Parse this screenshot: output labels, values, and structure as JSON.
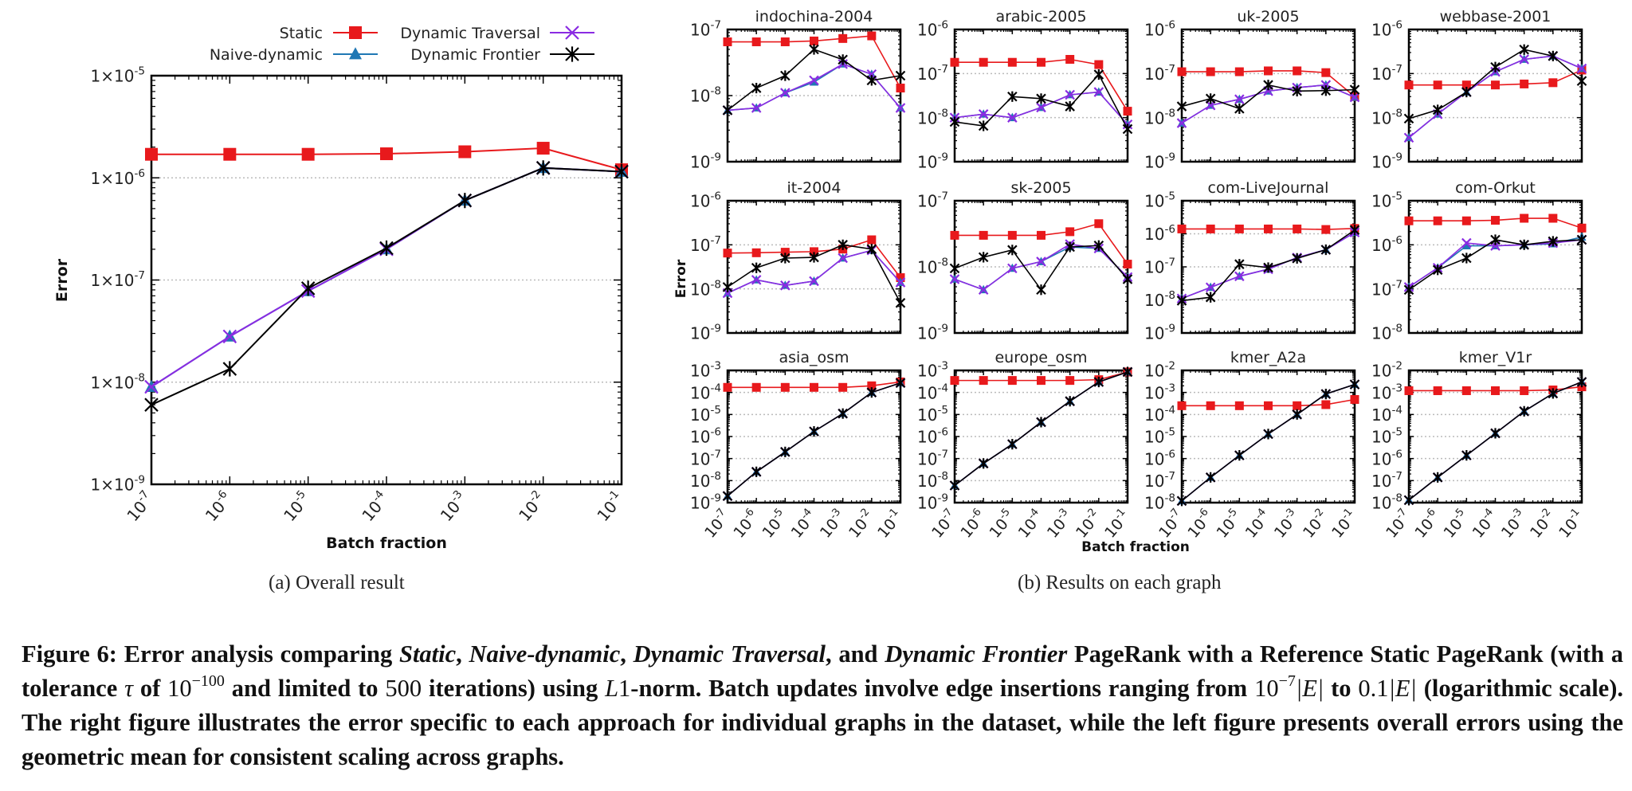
{
  "legend": {
    "entries": [
      {
        "key": "static",
        "label": "Static",
        "color": "#e8191c",
        "marker": "square"
      },
      {
        "key": "naive",
        "label": "Naive-dynamic",
        "color": "#1f77b4",
        "marker": "triangle"
      },
      {
        "key": "traversal",
        "label": "Dynamic Traversal",
        "color": "#8a2be2",
        "marker": "cross-x"
      },
      {
        "key": "frontier",
        "label": "Dynamic Frontier",
        "color": "#000000",
        "marker": "asterisk"
      }
    ]
  },
  "subcaptions": {
    "a": "(a)  Overall result",
    "b": "(b)  Results on each graph"
  },
  "caption": {
    "prefix": "Figure 6: Error analysis comparing ",
    "m1": "Static",
    "s1": ", ",
    "m2": "Naive-dynamic",
    "s2": ", ",
    "m3": "Dynamic Traversal",
    "s3": ", and ",
    "m4": "Dynamic Frontier",
    "s4": " PageRank with a Reference Static PageRank (with a tolerance ",
    "tau": "τ",
    "s5": " of ",
    "tol_base": "10",
    "tol_exp": "−100",
    "s6": " and limited to ",
    "iters": "500",
    "s7": " iterations) using ",
    "norm": "L",
    "norm_num": "1",
    "s8": "-norm. Batch updates involve edge insertions ranging from ",
    "from_base": "10",
    "from_exp": "−7",
    "from_e": "|E|",
    "s9": " to ",
    "to_val": "0.1",
    "to_e": "|E|",
    "s10": " (logarithmic scale). The right figure illustrates the error specific to each approach for individual graphs in the dataset, while the left figure presents overall errors using the geometric mean for consistent scaling across graphs."
  },
  "chart_data": [
    {
      "id": "overall",
      "type": "line",
      "title": "",
      "xlabel": "Batch fraction",
      "ylabel": "Error",
      "xscale": "log",
      "yscale": "log",
      "xlim": [
        1e-07,
        0.1
      ],
      "ylim": [
        1e-09,
        1e-05
      ],
      "x": [
        1e-07,
        1e-06,
        1e-05,
        0.0001,
        0.001,
        0.01,
        0.1
      ],
      "xtick_labels": [
        "10-7",
        "10-6",
        "10-5",
        "10-4",
        "10-3",
        "10-2",
        "10-1"
      ],
      "ytick_labels": [
        "1×10-9",
        "1×10-8",
        "1×10-7",
        "1×10-6",
        "1×10-5"
      ],
      "grid": "horizontal-dotted",
      "legend_position": "top",
      "series": [
        {
          "name": "Static",
          "values": [
            1.7e-06,
            1.7e-06,
            1.7e-06,
            1.72e-06,
            1.8e-06,
            1.95e-06,
            1.2e-06
          ]
        },
        {
          "name": "Naive-dynamic",
          "values": [
            9e-09,
            2.8e-08,
            7.8e-08,
            2e-07,
            6e-07,
            1.25e-06,
            1.15e-06
          ]
        },
        {
          "name": "Dynamic Traversal",
          "values": [
            9e-09,
            2.8e-08,
            7.8e-08,
            2e-07,
            6e-07,
            1.25e-06,
            1.15e-06
          ]
        },
        {
          "name": "Dynamic Frontier",
          "values": [
            6e-09,
            1.35e-08,
            8.3e-08,
            2.05e-07,
            6e-07,
            1.25e-06,
            1.15e-06
          ]
        }
      ]
    },
    {
      "id": "indochina-2004",
      "type": "line",
      "title": "indochina-2004",
      "xscale": "log",
      "yscale": "log",
      "ylim": [
        1e-09,
        1e-07
      ],
      "x": [
        1e-07,
        1e-06,
        1e-05,
        0.0001,
        0.001,
        0.01,
        0.1
      ],
      "series": [
        {
          "name": "Static",
          "values": [
            6.5e-08,
            6.5e-08,
            6.5e-08,
            6.7e-08,
            7.3e-08,
            8e-08,
            1.3e-08
          ]
        },
        {
          "name": "Naive-dynamic",
          "values": [
            6e-09,
            6.5e-09,
            1.1e-08,
            1.6e-08,
            3e-08,
            2.1e-08,
            6.5e-09
          ]
        },
        {
          "name": "Dynamic Traversal",
          "values": [
            6e-09,
            6.5e-09,
            1.1e-08,
            1.7e-08,
            3e-08,
            2.1e-08,
            6.5e-09
          ]
        },
        {
          "name": "Dynamic Frontier",
          "values": [
            6e-09,
            1.3e-08,
            2e-08,
            5e-08,
            3.5e-08,
            1.7e-08,
            2e-08
          ]
        }
      ]
    },
    {
      "id": "arabic-2005",
      "type": "line",
      "title": "arabic-2005",
      "xscale": "log",
      "yscale": "log",
      "ylim": [
        1e-09,
        1e-06
      ],
      "x": [
        1e-07,
        1e-06,
        1e-05,
        0.0001,
        0.001,
        0.01,
        0.1
      ],
      "series": [
        {
          "name": "Static",
          "values": [
            1.8e-07,
            1.8e-07,
            1.8e-07,
            1.8e-07,
            2.1e-07,
            1.6e-07,
            1.4e-08
          ]
        },
        {
          "name": "Naive-dynamic",
          "values": [
            1e-08,
            1.2e-08,
            1e-08,
            1.7e-08,
            3.3e-08,
            3.8e-08,
            7e-09
          ]
        },
        {
          "name": "Dynamic Traversal",
          "values": [
            1e-08,
            1.2e-08,
            1e-08,
            1.7e-08,
            3.3e-08,
            3.8e-08,
            7e-09
          ]
        },
        {
          "name": "Dynamic Frontier",
          "values": [
            8e-09,
            6.5e-09,
            3e-08,
            2.7e-08,
            1.8e-08,
            9.5e-08,
            5.5e-09
          ]
        }
      ]
    },
    {
      "id": "uk-2005",
      "type": "line",
      "title": "uk-2005",
      "xscale": "log",
      "yscale": "log",
      "ylim": [
        1e-09,
        1e-06
      ],
      "x": [
        1e-07,
        1e-06,
        1e-05,
        0.0001,
        0.001,
        0.01,
        0.1
      ],
      "series": [
        {
          "name": "Static",
          "values": [
            1.1e-07,
            1.1e-07,
            1.1e-07,
            1.15e-07,
            1.15e-07,
            1.05e-07,
            3e-08
          ]
        },
        {
          "name": "Naive-dynamic",
          "values": [
            7.5e-09,
            1.9e-08,
            2.6e-08,
            4e-08,
            4.8e-08,
            5.5e-08,
            2.9e-08
          ]
        },
        {
          "name": "Dynamic Traversal",
          "values": [
            7.5e-09,
            1.9e-08,
            2.6e-08,
            4e-08,
            4.8e-08,
            5.5e-08,
            2.9e-08
          ]
        },
        {
          "name": "Dynamic Frontier",
          "values": [
            1.8e-08,
            2.7e-08,
            1.6e-08,
            5.5e-08,
            4e-08,
            4.1e-08,
            4.3e-08
          ]
        }
      ]
    },
    {
      "id": "webbase-2001",
      "type": "line",
      "title": "webbase-2001",
      "xscale": "log",
      "yscale": "log",
      "ylim": [
        1e-09,
        1e-06
      ],
      "x": [
        1e-07,
        1e-06,
        1e-05,
        0.0001,
        0.001,
        0.01,
        0.1
      ],
      "series": [
        {
          "name": "Static",
          "values": [
            5.5e-08,
            5.5e-08,
            5.5e-08,
            5.5e-08,
            5.8e-08,
            6.2e-08,
            1.2e-07
          ]
        },
        {
          "name": "Naive-dynamic",
          "values": [
            3.5e-09,
            1.2e-08,
            3.8e-08,
            1.1e-07,
            2.1e-07,
            2.5e-07,
            1.3e-07
          ]
        },
        {
          "name": "Dynamic Traversal",
          "values": [
            3.5e-09,
            1.2e-08,
            3.8e-08,
            1.1e-07,
            2.1e-07,
            2.5e-07,
            1.3e-07
          ]
        },
        {
          "name": "Dynamic Frontier",
          "values": [
            9.5e-09,
            1.5e-08,
            3.8e-08,
            1.4e-07,
            3.5e-07,
            2.5e-07,
            6.8e-08
          ]
        }
      ]
    },
    {
      "id": "it-2004",
      "type": "line",
      "title": "it-2004",
      "xscale": "log",
      "yscale": "log",
      "ylim": [
        1e-09,
        1e-06
      ],
      "x": [
        1e-07,
        1e-06,
        1e-05,
        0.0001,
        0.001,
        0.01,
        0.1
      ],
      "series": [
        {
          "name": "Static",
          "values": [
            6.5e-08,
            6.6e-08,
            6.8e-08,
            7e-08,
            8e-08,
            1.3e-07,
            1.8e-08
          ]
        },
        {
          "name": "Naive-dynamic",
          "values": [
            8e-09,
            1.6e-08,
            1.2e-08,
            1.5e-08,
            5e-08,
            7.5e-08,
            1.4e-08
          ]
        },
        {
          "name": "Dynamic Traversal",
          "values": [
            8e-09,
            1.6e-08,
            1.2e-08,
            1.5e-08,
            5e-08,
            7.5e-08,
            1.4e-08
          ]
        },
        {
          "name": "Dynamic Frontier",
          "values": [
            1.1e-08,
            3e-08,
            5e-08,
            5.2e-08,
            1e-07,
            8e-08,
            4.8e-09
          ]
        }
      ]
    },
    {
      "id": "sk-2005",
      "type": "line",
      "title": "sk-2005",
      "xscale": "log",
      "yscale": "log",
      "ylim": [
        1e-09,
        1e-07
      ],
      "x": [
        1e-07,
        1e-06,
        1e-05,
        0.0001,
        0.001,
        0.01,
        0.1
      ],
      "series": [
        {
          "name": "Static",
          "values": [
            3e-08,
            3e-08,
            3e-08,
            3e-08,
            3.4e-08,
            4.5e-08,
            1.1e-08
          ]
        },
        {
          "name": "Naive-dynamic",
          "values": [
            6.5e-09,
            4.5e-09,
            9.5e-09,
            1.2e-08,
            2e-08,
            1.9e-08,
            7e-09
          ]
        },
        {
          "name": "Dynamic Traversal",
          "values": [
            6.5e-09,
            4.5e-09,
            9.5e-09,
            1.2e-08,
            2.2e-08,
            1.9e-08,
            7e-09
          ]
        },
        {
          "name": "Dynamic Frontier",
          "values": [
            9.5e-09,
            1.4e-08,
            1.8e-08,
            4.5e-09,
            2e-08,
            2.1e-08,
            6.5e-09
          ]
        }
      ]
    },
    {
      "id": "com-LiveJournal",
      "type": "line",
      "title": "com-LiveJournal",
      "xscale": "log",
      "yscale": "log",
      "ylim": [
        1e-09,
        1e-05
      ],
      "x": [
        1e-07,
        1e-06,
        1e-05,
        0.0001,
        0.001,
        0.01,
        0.1
      ],
      "series": [
        {
          "name": "Static",
          "values": [
            1.4e-06,
            1.4e-06,
            1.4e-06,
            1.4e-06,
            1.4e-06,
            1.35e-06,
            1.45e-06
          ]
        },
        {
          "name": "Naive-dynamic",
          "values": [
            1.1e-08,
            2.4e-08,
            5.2e-08,
            8.5e-08,
            1.9e-07,
            3.3e-07,
            1.1e-06
          ]
        },
        {
          "name": "Dynamic Traversal",
          "values": [
            1.1e-08,
            2.4e-08,
            5.2e-08,
            8.5e-08,
            1.9e-07,
            3.3e-07,
            1.1e-06
          ]
        },
        {
          "name": "Dynamic Frontier",
          "values": [
            9.5e-09,
            1.2e-08,
            1.2e-07,
            9.5e-08,
            1.8e-07,
            3.3e-07,
            1.3e-06
          ]
        }
      ]
    },
    {
      "id": "com-Orkut",
      "type": "line",
      "title": "com-Orkut",
      "xscale": "log",
      "yscale": "log",
      "ylim": [
        1e-08,
        1e-05
      ],
      "x": [
        1e-07,
        1e-06,
        1e-05,
        0.0001,
        0.001,
        0.01,
        0.1
      ],
      "series": [
        {
          "name": "Static",
          "values": [
            3.5e-06,
            3.5e-06,
            3.5e-06,
            3.6e-06,
            4e-06,
            4e-06,
            2.4e-06
          ]
        },
        {
          "name": "Naive-dynamic",
          "values": [
            1.1e-07,
            3e-07,
            9.5e-07,
            9.5e-07,
            1e-06,
            1.05e-06,
            1.5e-06
          ]
        },
        {
          "name": "Dynamic Traversal",
          "values": [
            1.1e-07,
            3e-07,
            1.1e-06,
            9.5e-07,
            1e-06,
            1.1e-06,
            1.3e-06
          ]
        },
        {
          "name": "Dynamic Frontier",
          "values": [
            9.5e-08,
            2.7e-07,
            5e-07,
            1.3e-06,
            1e-06,
            1.2e-06,
            1.3e-06
          ]
        }
      ]
    },
    {
      "id": "asia_osm",
      "type": "line",
      "title": "asia_osm",
      "xscale": "log",
      "yscale": "log",
      "ylim": [
        1e-09,
        0.001
      ],
      "x": [
        1e-07,
        1e-06,
        1e-05,
        0.0001,
        0.001,
        0.01,
        0.1
      ],
      "show_xticks": true,
      "series": [
        {
          "name": "Static",
          "values": [
            0.00017,
            0.00017,
            0.00017,
            0.00017,
            0.00017,
            0.0002,
            0.0003
          ]
        },
        {
          "name": "Naive-dynamic",
          "values": [
            2e-09,
            2.5e-08,
            2e-07,
            1.7e-06,
            1.1e-05,
            0.0001,
            0.00027
          ]
        },
        {
          "name": "Dynamic Traversal",
          "values": [
            2e-09,
            2.5e-08,
            2e-07,
            1.7e-06,
            1.1e-05,
            0.0001,
            0.00027
          ]
        },
        {
          "name": "Dynamic Frontier",
          "values": [
            2e-09,
            2.5e-08,
            2e-07,
            1.7e-06,
            1.1e-05,
            0.0001,
            0.00027
          ]
        }
      ]
    },
    {
      "id": "europe_osm",
      "type": "line",
      "title": "europe_osm",
      "xscale": "log",
      "yscale": "log",
      "ylim": [
        1e-09,
        0.001
      ],
      "x": [
        1e-07,
        1e-06,
        1e-05,
        0.0001,
        0.001,
        0.01,
        0.1
      ],
      "show_xticks": true,
      "series": [
        {
          "name": "Static",
          "values": [
            0.00035,
            0.00035,
            0.00035,
            0.00035,
            0.00035,
            0.00038,
            0.00085
          ]
        },
        {
          "name": "Naive-dynamic",
          "values": [
            6e-09,
            6e-08,
            4.5e-07,
            4.5e-06,
            4e-05,
            0.0003,
            0.00085
          ]
        },
        {
          "name": "Dynamic Traversal",
          "values": [
            6e-09,
            6e-08,
            4.5e-07,
            4.5e-06,
            4e-05,
            0.0003,
            0.00085
          ]
        },
        {
          "name": "Dynamic Frontier",
          "values": [
            6e-09,
            6e-08,
            4.5e-07,
            4.5e-06,
            4e-05,
            0.0003,
            0.00085
          ]
        }
      ]
    },
    {
      "id": "kmer_A2a",
      "type": "line",
      "title": "kmer_A2a",
      "xscale": "log",
      "yscale": "log",
      "ylim": [
        1e-08,
        0.01
      ],
      "x": [
        1e-07,
        1e-06,
        1e-05,
        0.0001,
        0.001,
        0.01,
        0.1
      ],
      "show_xticks": true,
      "series": [
        {
          "name": "Static",
          "values": [
            0.00025,
            0.00025,
            0.00025,
            0.00025,
            0.00025,
            0.00028,
            0.00048
          ]
        },
        {
          "name": "Naive-dynamic",
          "values": [
            1.2e-08,
            1.4e-07,
            1.4e-06,
            1.3e-05,
            0.0001,
            0.00085,
            0.0023
          ]
        },
        {
          "name": "Dynamic Traversal",
          "values": [
            1.2e-08,
            1.4e-07,
            1.4e-06,
            1.3e-05,
            0.0001,
            0.00085,
            0.0023
          ]
        },
        {
          "name": "Dynamic Frontier",
          "values": [
            1.2e-08,
            1.4e-07,
            1.4e-06,
            1.3e-05,
            0.0001,
            0.00085,
            0.0023
          ]
        }
      ]
    },
    {
      "id": "kmer_V1r",
      "type": "line",
      "title": "kmer_V1r",
      "xscale": "log",
      "yscale": "log",
      "ylim": [
        1e-08,
        0.01
      ],
      "x": [
        1e-07,
        1e-06,
        1e-05,
        0.0001,
        0.001,
        0.01,
        0.1
      ],
      "show_xticks": true,
      "series": [
        {
          "name": "Static",
          "values": [
            0.0012,
            0.0012,
            0.0012,
            0.0012,
            0.0012,
            0.0013,
            0.0018
          ]
        },
        {
          "name": "Naive-dynamic",
          "values": [
            1.3e-08,
            1.4e-07,
            1.4e-06,
            1.4e-05,
            0.00014,
            0.0009,
            0.003
          ]
        },
        {
          "name": "Dynamic Traversal",
          "values": [
            1.3e-08,
            1.4e-07,
            1.4e-06,
            1.4e-05,
            0.00014,
            0.0009,
            0.003
          ]
        },
        {
          "name": "Dynamic Frontier",
          "values": [
            1.3e-08,
            1.4e-07,
            1.4e-06,
            1.4e-05,
            0.00014,
            0.0009,
            0.003
          ]
        }
      ]
    }
  ],
  "grid_panel": {
    "ylabel": "Error",
    "xlabel": "Batch fraction"
  }
}
